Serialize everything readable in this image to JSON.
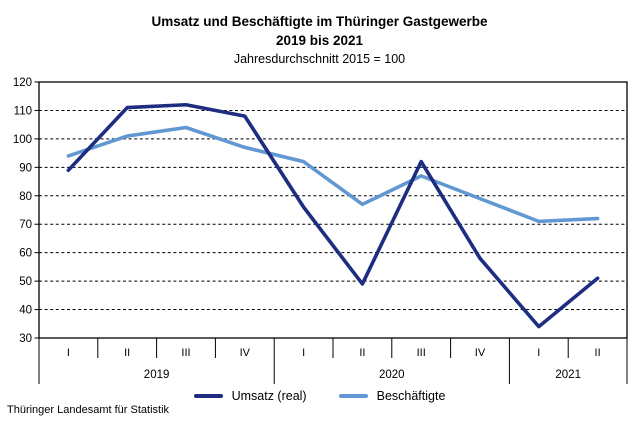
{
  "chart_data": {
    "type": "line",
    "title": "Umsatz und Beschäftigte im Thüringer Gastgewerbe",
    "title_line2": "2019 bis 2021",
    "subtitle": "Jahresdurchschnitt 2015 = 100",
    "categories": [
      "I",
      "II",
      "III",
      "IV",
      "I",
      "II",
      "III",
      "IV",
      "I",
      "II"
    ],
    "year_groups": [
      {
        "label": "2019",
        "span": 4
      },
      {
        "label": "2020",
        "span": 4
      },
      {
        "label": "2021",
        "span": 2
      }
    ],
    "series": [
      {
        "name": "Umsatz (real)",
        "color": "#1e2d80",
        "values": [
          89,
          111,
          112,
          108,
          76,
          49,
          92,
          58,
          34,
          51
        ]
      },
      {
        "name": "Beschäftigte",
        "color": "#6197d3",
        "values": [
          94,
          101,
          104,
          97,
          92,
          77,
          87,
          79,
          71,
          72
        ]
      }
    ],
    "xlabel": "",
    "ylabel": "",
    "ylim": [
      30,
      120
    ],
    "yticks": [
      30,
      40,
      50,
      60,
      70,
      80,
      90,
      100,
      110,
      120
    ],
    "grid": "horizontal-dashed",
    "legend_position": "bottom-center",
    "axis_color": "#000000"
  },
  "source": "Thüringer Landesamt für Statistik"
}
